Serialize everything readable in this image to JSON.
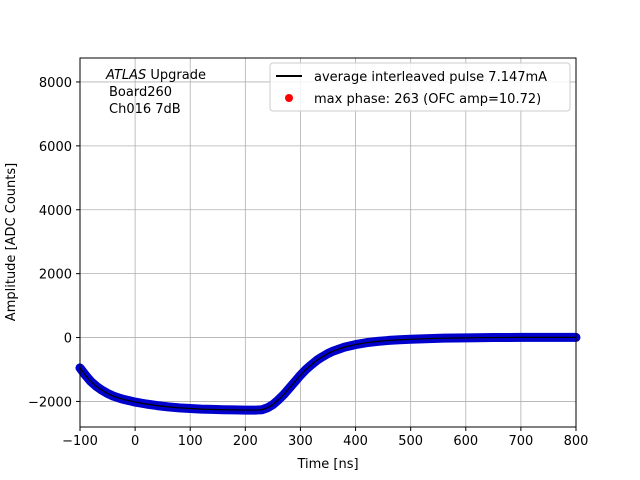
{
  "chart_data": {
    "type": "line",
    "title": "",
    "xlabel": "Time [ns]",
    "ylabel": "Amplitude [ADC Counts]",
    "xlim": [
      -100,
      800
    ],
    "ylim": [
      -2800,
      8750
    ],
    "xticks": [
      -100,
      0,
      100,
      200,
      300,
      400,
      500,
      600,
      700,
      800
    ],
    "yticks": [
      -2000,
      0,
      2000,
      4000,
      6000,
      8000
    ],
    "grid": true,
    "legend_position": "top-right",
    "annotation": {
      "italic": "ATLAS",
      "line1_rest": " Upgrade",
      "line2": "Board260",
      "line3": "Ch016 7dB"
    },
    "series": [
      {
        "name": "average interleaved pulse 7.147mA",
        "color": "#000000",
        "marker_color": "#0000cc",
        "x": [
          -100,
          -90,
          -80,
          -70,
          -60,
          -50,
          -40,
          -30,
          -20,
          -10,
          0,
          20,
          40,
          60,
          80,
          100,
          120,
          140,
          160,
          180,
          200,
          220,
          230,
          240,
          250,
          260,
          270,
          280,
          290,
          300,
          310,
          320,
          330,
          340,
          350,
          360,
          380,
          400,
          420,
          440,
          460,
          480,
          500,
          520,
          540,
          560,
          580,
          600,
          620,
          650,
          700,
          750,
          800
        ],
        "y": [
          -950,
          -1180,
          -1380,
          -1530,
          -1650,
          -1750,
          -1830,
          -1890,
          -1940,
          -1980,
          -2020,
          -2080,
          -2130,
          -2170,
          -2200,
          -2220,
          -2240,
          -2250,
          -2260,
          -2265,
          -2270,
          -2270,
          -2260,
          -2200,
          -2100,
          -1950,
          -1780,
          -1580,
          -1380,
          -1180,
          -1000,
          -850,
          -710,
          -600,
          -500,
          -420,
          -300,
          -220,
          -160,
          -120,
          -90,
          -70,
          -55,
          -40,
          -30,
          -20,
          -15,
          -10,
          -5,
          0,
          5,
          5,
          5
        ]
      },
      {
        "name": "max phase: 263 (OFC amp=10.72)",
        "color": "#ff0000",
        "x": [],
        "y": []
      }
    ]
  }
}
